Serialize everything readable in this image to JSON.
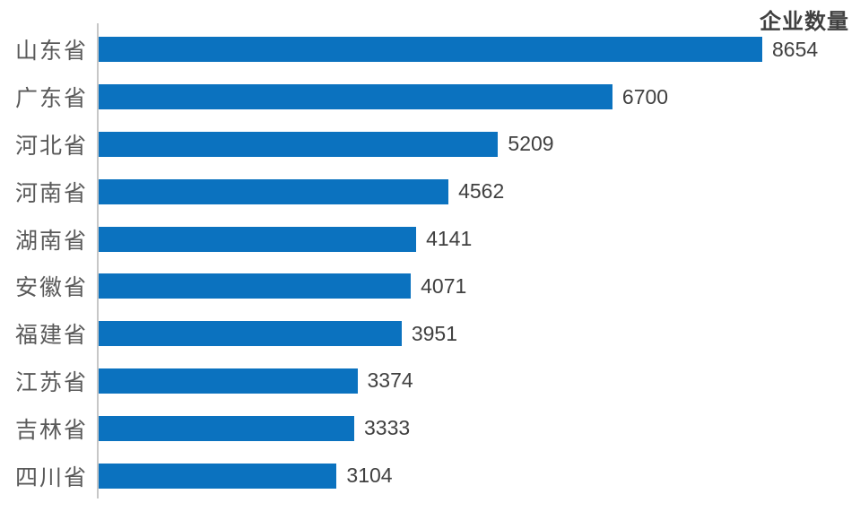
{
  "chart_data": {
    "type": "bar",
    "orientation": "horizontal",
    "title": "企业数量",
    "categories": [
      "山东省",
      "广东省",
      "河北省",
      "河南省",
      "湖南省",
      "安徽省",
      "福建省",
      "江苏省",
      "吉林省",
      "四川省"
    ],
    "values": [
      8654,
      6700,
      5209,
      4562,
      4141,
      4071,
      3951,
      3374,
      3333,
      3104
    ],
    "xlim": [
      0,
      8654
    ],
    "grid": false,
    "legend_position": "none",
    "value_labels_shown": true,
    "colors": {
      "bar": "#0B72BF",
      "category_label": "#595959",
      "value_label": "#404040",
      "title": "#404040",
      "axis_line": "#C7C7C7",
      "background": "#FFFFFF"
    }
  }
}
